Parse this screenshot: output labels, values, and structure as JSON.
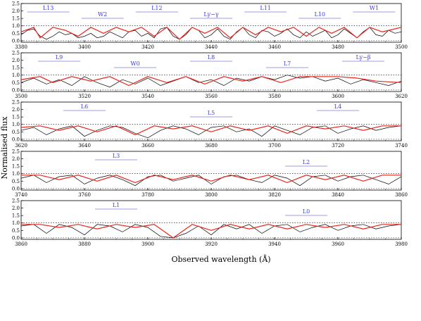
{
  "figure": {
    "ylabel": "Normalised flux",
    "xlabel": "Observed wavelength (Å)"
  },
  "colors": {
    "spectrum": "#000000",
    "model": "#e8261e",
    "labels": "#3b3bd6",
    "continuum": "#e8261e",
    "green": "#2a9d2a"
  },
  "chart_data": [
    {
      "type": "line",
      "xlim": [
        3380,
        3500
      ],
      "ylim": [
        -0.1,
        2.5
      ],
      "xticks": [
        3380,
        3400,
        3420,
        3440,
        3460,
        3480,
        3500
      ],
      "yticks": [
        "0.0",
        "0.5",
        "1.0",
        "1.5",
        "2.0",
        "2.5"
      ],
      "annotations": [
        "L13",
        "W2",
        "L12",
        "Ly−γ",
        "L11",
        "L10",
        "W1"
      ],
      "series": [
        {
          "x": [
            3380,
            3382,
            3384,
            3386,
            3388,
            3390,
            3392,
            3394,
            3396,
            3398,
            3400,
            3402,
            3404,
            3406,
            3408,
            3410,
            3412,
            3414,
            3416,
            3418,
            3420,
            3422,
            3424,
            3426,
            3428,
            3430,
            3432,
            3434,
            3436,
            3438,
            3440,
            3442,
            3444,
            3446,
            3448,
            3450,
            3452,
            3454,
            3456,
            3458,
            3460,
            3462,
            3464,
            3466,
            3468,
            3470,
            3472,
            3474,
            3476,
            3478,
            3480,
            3482,
            3484,
            3486,
            3488,
            3490,
            3492,
            3494,
            3496,
            3498,
            3500
          ],
          "y": [
            0.4,
            0.7,
            0.8,
            0.3,
            0.1,
            0.3,
            0.6,
            0.4,
            0.5,
            0.2,
            0.3,
            0.5,
            0.2,
            0.3,
            0.6,
            0.4,
            0.2,
            0.6,
            0.7,
            0.3,
            0.5,
            0.2,
            0.8,
            0.9,
            0.3,
            0.1,
            0.4,
            0.9,
            0.7,
            0.2,
            0.4,
            0.8,
            0.3,
            0.1,
            0.6,
            0.9,
            0.4,
            0.2,
            0.7,
            0.6,
            0.3,
            0.5,
            0.8,
            0.4,
            0.2,
            0.6,
            0.3,
            0.5,
            0.7,
            0.2,
            0.4,
            0.8,
            0.5,
            0.2,
            0.6,
            0.9,
            0.4,
            0.3,
            0.7,
            0.5,
            0.6
          ]
        },
        {
          "x": [
            3380,
            3384,
            3386,
            3390,
            3394,
            3398,
            3402,
            3406,
            3410,
            3414,
            3418,
            3422,
            3426,
            3430,
            3434,
            3438,
            3442,
            3446,
            3450,
            3454,
            3458,
            3462,
            3466,
            3470,
            3474,
            3478,
            3482,
            3486,
            3490,
            3494,
            3498,
            3500
          ],
          "y": [
            0.6,
            0.9,
            0.2,
            0.9,
            0.7,
            0.3,
            0.9,
            0.5,
            0.9,
            0.6,
            0.9,
            0.3,
            0.9,
            0.1,
            0.9,
            0.5,
            0.9,
            0.2,
            0.9,
            0.4,
            0.9,
            0.6,
            0.9,
            0.3,
            0.9,
            0.5,
            0.9,
            0.2,
            0.9,
            0.6,
            0.8,
            0.9
          ]
        }
      ]
    },
    {
      "type": "line",
      "xlim": [
        3500,
        3620
      ],
      "ylim": [
        -0.1,
        2.5
      ],
      "xticks": [
        3500,
        3520,
        3540,
        3560,
        3580,
        3600,
        3620
      ],
      "yticks": [
        "0.0",
        "0.5",
        "1.0",
        "1.5",
        "2.0",
        "2.5"
      ],
      "annotations": [
        "L9",
        "W0",
        "L8",
        "L7",
        "Ly−β"
      ],
      "series": [
        {
          "x": [
            3500,
            3504,
            3508,
            3512,
            3516,
            3520,
            3524,
            3528,
            3532,
            3536,
            3540,
            3544,
            3548,
            3552,
            3556,
            3560,
            3564,
            3568,
            3572,
            3576,
            3580,
            3584,
            3588,
            3592,
            3596,
            3600,
            3604,
            3608,
            3612,
            3616,
            3620
          ],
          "y": [
            0.5,
            0.8,
            0.4,
            0.7,
            0.3,
            0.9,
            0.5,
            0.2,
            0.7,
            0.4,
            0.8,
            0.3,
            0.6,
            0.9,
            0.5,
            0.7,
            0.3,
            0.8,
            0.6,
            0.9,
            0.7,
            1.0,
            0.8,
            0.9,
            0.6,
            0.8,
            0.4,
            0.7,
            0.5,
            0.3,
            0.6
          ]
        },
        {
          "x": [
            3500,
            3506,
            3510,
            3516,
            3522,
            3528,
            3534,
            3540,
            3546,
            3552,
            3558,
            3564,
            3570,
            3576,
            3582,
            3588,
            3594,
            3600,
            3606,
            3612,
            3620
          ],
          "y": [
            0.7,
            0.9,
            0.5,
            0.9,
            0.6,
            0.9,
            0.3,
            0.9,
            0.5,
            0.9,
            0.4,
            0.9,
            0.6,
            0.9,
            0.5,
            0.9,
            0.9,
            0.9,
            0.8,
            0.6,
            0.5
          ]
        }
      ]
    },
    {
      "type": "line",
      "xlim": [
        3620,
        3740
      ],
      "ylim": [
        -0.1,
        2.5
      ],
      "xticks": [
        3620,
        3640,
        3660,
        3680,
        3700,
        3720,
        3740
      ],
      "yticks": [
        "0.0",
        "0.5",
        "1.0",
        "1.5",
        "2.0",
        "2.5"
      ],
      "annotations": [
        "L6",
        "L5",
        "L4"
      ],
      "series": [
        {
          "x": [
            3620,
            3624,
            3628,
            3632,
            3636,
            3640,
            3644,
            3648,
            3652,
            3656,
            3660,
            3664,
            3668,
            3672,
            3676,
            3680,
            3684,
            3688,
            3692,
            3696,
            3700,
            3704,
            3708,
            3712,
            3716,
            3720,
            3724,
            3728,
            3732,
            3736,
            3740
          ],
          "y": [
            0.6,
            0.8,
            0.3,
            0.7,
            0.9,
            0.2,
            0.6,
            0.9,
            0.8,
            0.4,
            0.1,
            0.6,
            0.9,
            0.7,
            0.3,
            0.8,
            0.9,
            0.5,
            0.7,
            0.2,
            0.9,
            0.6,
            0.3,
            0.8,
            0.9,
            0.4,
            0.7,
            0.9,
            0.6,
            0.8,
            0.9
          ]
        },
        {
          "x": [
            3620,
            3626,
            3632,
            3638,
            3644,
            3650,
            3656,
            3662,
            3668,
            3674,
            3680,
            3686,
            3692,
            3698,
            3704,
            3710,
            3716,
            3722,
            3728,
            3734,
            3740
          ],
          "y": [
            0.8,
            0.9,
            0.6,
            0.9,
            0.5,
            0.9,
            0.3,
            0.9,
            0.7,
            0.9,
            0.5,
            0.9,
            0.6,
            0.9,
            0.4,
            0.9,
            0.7,
            0.9,
            0.6,
            0.9,
            0.9
          ]
        }
      ]
    },
    {
      "type": "line",
      "xlim": [
        3740,
        3860
      ],
      "ylim": [
        -0.1,
        2.5
      ],
      "xticks": [
        3740,
        3760,
        3780,
        3800,
        3820,
        3840,
        3860
      ],
      "yticks": [
        "0.0",
        "0.5",
        "1.0",
        "1.5",
        "2.0",
        "2.5"
      ],
      "annotations": [
        "L3",
        "L2"
      ],
      "series": [
        {
          "x": [
            3740,
            3744,
            3748,
            3752,
            3756,
            3760,
            3764,
            3768,
            3772,
            3776,
            3780,
            3784,
            3788,
            3792,
            3796,
            3800,
            3804,
            3808,
            3812,
            3816,
            3820,
            3824,
            3828,
            3832,
            3836,
            3840,
            3844,
            3848,
            3852,
            3856,
            3860
          ],
          "y": [
            0.7,
            0.9,
            0.4,
            0.8,
            0.9,
            0.3,
            0.7,
            0.9,
            0.6,
            0.2,
            0.8,
            0.9,
            0.5,
            0.7,
            0.9,
            0.3,
            0.8,
            0.9,
            0.6,
            0.4,
            0.9,
            0.7,
            0.2,
            0.8,
            0.9,
            0.5,
            0.8,
            0.9,
            0.6,
            0.3,
            0.8
          ]
        },
        {
          "x": [
            3740,
            3746,
            3752,
            3758,
            3764,
            3770,
            3776,
            3782,
            3788,
            3794,
            3800,
            3806,
            3812,
            3818,
            3824,
            3830,
            3836,
            3842,
            3848,
            3854,
            3860
          ],
          "y": [
            0.9,
            0.9,
            0.6,
            0.9,
            0.5,
            0.9,
            0.4,
            0.9,
            0.6,
            0.9,
            0.5,
            0.9,
            0.6,
            0.9,
            0.4,
            0.9,
            0.6,
            0.9,
            0.5,
            0.9,
            0.9
          ]
        }
      ]
    },
    {
      "type": "line",
      "xlim": [
        3860,
        3980
      ],
      "ylim": [
        -0.1,
        2.5
      ],
      "xticks": [
        3860,
        3880,
        3900,
        3920,
        3940,
        3960,
        3980
      ],
      "yticks": [
        "0.0",
        "0.5",
        "1.0",
        "1.5",
        "2.0",
        "2.5"
      ],
      "annotations": [
        "L1",
        "L0"
      ],
      "series": [
        {
          "x": [
            3860,
            3864,
            3868,
            3872,
            3876,
            3880,
            3884,
            3888,
            3892,
            3896,
            3900,
            3904,
            3908,
            3912,
            3916,
            3920,
            3924,
            3928,
            3932,
            3936,
            3940,
            3944,
            3948,
            3952,
            3956,
            3960,
            3964,
            3968,
            3972,
            3976,
            3980
          ],
          "y": [
            0.8,
            0.9,
            0.3,
            0.9,
            0.7,
            0.2,
            0.9,
            0.8,
            0.4,
            0.9,
            0.7,
            0.1,
            0.0,
            0.3,
            0.8,
            0.2,
            0.9,
            0.6,
            0.9,
            0.3,
            0.8,
            0.9,
            0.4,
            0.7,
            0.9,
            0.5,
            0.8,
            0.9,
            0.6,
            0.8,
            0.9
          ]
        },
        {
          "x": [
            3860,
            3866,
            3872,
            3878,
            3884,
            3890,
            3896,
            3902,
            3908,
            3914,
            3920,
            3926,
            3932,
            3938,
            3944,
            3950,
            3956,
            3962,
            3968,
            3974,
            3980
          ],
          "y": [
            0.9,
            0.9,
            0.7,
            0.9,
            0.6,
            0.9,
            0.7,
            0.9,
            0.0,
            0.9,
            0.5,
            0.9,
            0.6,
            0.9,
            0.6,
            0.9,
            0.7,
            0.9,
            0.6,
            0.9,
            0.9
          ]
        }
      ]
    }
  ]
}
